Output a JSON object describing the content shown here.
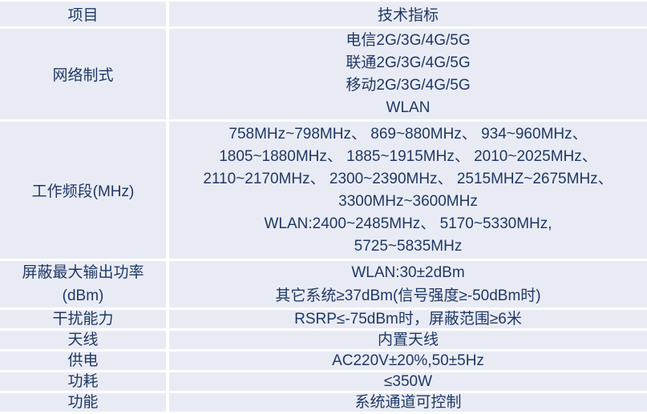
{
  "colors": {
    "cell_background": "#e9ebf4",
    "grid_line": "#ffffff",
    "text": "#1f3864"
  },
  "table": {
    "header": {
      "item_col": "项目",
      "spec_col": "技术指标"
    },
    "rows": [
      {
        "item_lines": [
          "网络制式"
        ],
        "specs": [
          "电信2G/3G/4G/5G",
          "联通2G/3G/4G/5G",
          "移动2G/3G/4G/5G",
          "WLAN"
        ]
      },
      {
        "item_lines": [
          "工作频段(MHz)"
        ],
        "specs": [
          "758MHz~798MHz、 869~880MHz、 934~960MHz、",
          "1805~1880MHz、 1885~1915MHz、 2010~2025MHz、",
          "2110~2170MHz、 2300~2390MHz、 2515MHZ~2675MHz、",
          "3300MHz~3600MHz",
          "WLAN:2400~2485MHz、 5170~5330MHz,",
          "5725~5835MHz"
        ]
      },
      {
        "item_lines": [
          "屏蔽最大输出功率",
          "(dBm)"
        ],
        "specs": [
          "WLAN:30±2dBm",
          "其它系统≥37dBm(信号强度≥-50dBm时)"
        ]
      },
      {
        "item_lines": [
          "干扰能力"
        ],
        "specs": [
          "RSRP≤-75dBm时，屏蔽范围≥6米"
        ]
      },
      {
        "item_lines": [
          "天线"
        ],
        "specs": [
          "内置天线"
        ]
      },
      {
        "item_lines": [
          "供电"
        ],
        "specs": [
          "AC220V±20%,50±5Hz"
        ]
      },
      {
        "item_lines": [
          "功耗"
        ],
        "specs": [
          "≤350W"
        ]
      },
      {
        "item_lines": [
          "功能"
        ],
        "specs": [
          "系统通道可控制"
        ]
      }
    ]
  }
}
